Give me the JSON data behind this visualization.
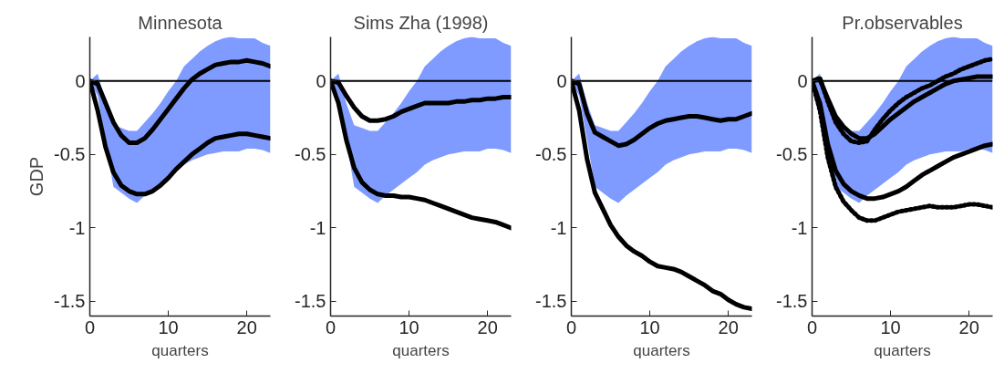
{
  "chart_data": [
    {
      "type": "line",
      "title": "Minnesota",
      "xlabel": "quarters",
      "ylabel": "GDP",
      "xlim": [
        0,
        23
      ],
      "ylim": [
        -1.6,
        0.3
      ],
      "xticks": [
        0,
        10,
        20
      ],
      "yticks": [
        -1.5,
        -1,
        -0.5,
        0
      ],
      "grid": false,
      "x": [
        0,
        1,
        2,
        3,
        4,
        5,
        6,
        7,
        8,
        9,
        10,
        11,
        12,
        13,
        14,
        15,
        16,
        17,
        18,
        19,
        20,
        21,
        22,
        23
      ],
      "ref_lines": [
        {
          "axis": "y",
          "value": 0,
          "color": "#000000"
        }
      ],
      "series": [
        {
          "color": "#000000",
          "line_style": "solid",
          "values": [
            0,
            -0.02,
            -0.15,
            -0.28,
            -0.37,
            -0.42,
            -0.42,
            -0.39,
            -0.33,
            -0.26,
            -0.19,
            -0.12,
            -0.05,
            0.01,
            0.05,
            0.08,
            0.11,
            0.12,
            0.13,
            0.13,
            0.14,
            0.13,
            0.12,
            0.1
          ],
          "lower": [
            0,
            -0.1,
            -0.4,
            -0.72,
            -0.76,
            -0.8,
            -0.83,
            -0.78,
            -0.74,
            -0.7,
            -0.66,
            -0.62,
            -0.57,
            -0.54,
            -0.52,
            -0.5,
            -0.49,
            -0.48,
            -0.48,
            -0.48,
            -0.46,
            -0.46,
            -0.47,
            -0.49
          ],
          "upper": [
            0,
            0.05,
            -0.15,
            -0.3,
            -0.32,
            -0.34,
            -0.34,
            -0.28,
            -0.22,
            -0.15,
            -0.07,
            0,
            0.1,
            0.15,
            0.2,
            0.24,
            0.27,
            0.29,
            0.3,
            0.29,
            0.29,
            0.29,
            0.26,
            0.24
          ]
        },
        {
          "color": "#000000",
          "line_style": "solid",
          "values": [
            0,
            -0.2,
            -0.45,
            -0.62,
            -0.71,
            -0.75,
            -0.77,
            -0.77,
            -0.75,
            -0.71,
            -0.66,
            -0.6,
            -0.55,
            -0.5,
            -0.46,
            -0.42,
            -0.39,
            -0.38,
            -0.37,
            -0.36,
            -0.36,
            -0.37,
            -0.38,
            -0.39
          ]
        }
      ]
    },
    {
      "type": "line",
      "title": "Sims Zha (1998)",
      "xlabel": "quarters",
      "xlim": [
        0,
        23
      ],
      "ylim": [
        -1.6,
        0.3
      ],
      "xticks": [
        0,
        10,
        20
      ],
      "yticks": [
        -1.5,
        -1,
        -0.5,
        0
      ],
      "grid": false,
      "x": [
        0,
        1,
        2,
        3,
        4,
        5,
        6,
        7,
        8,
        9,
        10,
        11,
        12,
        13,
        14,
        15,
        16,
        17,
        18,
        19,
        20,
        21,
        22,
        23
      ],
      "ref_lines": [
        {
          "axis": "y",
          "value": 0,
          "color": "#000000"
        }
      ],
      "series": [
        {
          "color": "#000000",
          "line_style": "solid",
          "values": [
            0,
            -0.01,
            -0.1,
            -0.18,
            -0.24,
            -0.27,
            -0.27,
            -0.26,
            -0.24,
            -0.21,
            -0.19,
            -0.17,
            -0.15,
            -0.15,
            -0.15,
            -0.15,
            -0.14,
            -0.14,
            -0.13,
            -0.13,
            -0.12,
            -0.12,
            -0.11,
            -0.11
          ],
          "lower": [
            0,
            -0.1,
            -0.4,
            -0.72,
            -0.76,
            -0.8,
            -0.83,
            -0.78,
            -0.74,
            -0.7,
            -0.66,
            -0.62,
            -0.57,
            -0.54,
            -0.52,
            -0.5,
            -0.49,
            -0.48,
            -0.48,
            -0.48,
            -0.46,
            -0.46,
            -0.47,
            -0.49
          ],
          "upper": [
            0,
            0.05,
            -0.15,
            -0.3,
            -0.32,
            -0.34,
            -0.34,
            -0.28,
            -0.22,
            -0.15,
            -0.07,
            0,
            0.1,
            0.15,
            0.2,
            0.24,
            0.27,
            0.29,
            0.3,
            0.29,
            0.29,
            0.29,
            0.26,
            0.24
          ]
        },
        {
          "color": "#000000",
          "line_style": "solid",
          "values": [
            0,
            -0.15,
            -0.4,
            -0.59,
            -0.69,
            -0.74,
            -0.77,
            -0.78,
            -0.78,
            -0.79,
            -0.79,
            -0.8,
            -0.81,
            -0.83,
            -0.85,
            -0.87,
            -0.89,
            -0.91,
            -0.93,
            -0.94,
            -0.95,
            -0.96,
            -0.98,
            -1.0
          ]
        }
      ]
    },
    {
      "type": "line",
      "xlabel": "quarters",
      "xlim": [
        0,
        23
      ],
      "ylim": [
        -1.6,
        0.3
      ],
      "xticks": [
        0,
        10,
        20
      ],
      "yticks": [
        -1.5,
        -1,
        -0.5,
        0
      ],
      "grid": false,
      "x": [
        0,
        1,
        2,
        3,
        4,
        5,
        6,
        7,
        8,
        9,
        10,
        11,
        12,
        13,
        14,
        15,
        16,
        17,
        18,
        19,
        20,
        21,
        22,
        23
      ],
      "ref_lines": [
        {
          "axis": "y",
          "value": 0,
          "color": "#000000"
        }
      ],
      "series": [
        {
          "color": "#000000",
          "line_style": "solid",
          "values": [
            0,
            -0.02,
            -0.22,
            -0.35,
            -0.38,
            -0.41,
            -0.44,
            -0.43,
            -0.4,
            -0.36,
            -0.32,
            -0.29,
            -0.27,
            -0.26,
            -0.25,
            -0.24,
            -0.24,
            -0.25,
            -0.26,
            -0.27,
            -0.26,
            -0.26,
            -0.24,
            -0.22
          ],
          "lower": [
            0,
            -0.1,
            -0.4,
            -0.72,
            -0.76,
            -0.8,
            -0.83,
            -0.78,
            -0.74,
            -0.7,
            -0.66,
            -0.62,
            -0.57,
            -0.54,
            -0.52,
            -0.5,
            -0.49,
            -0.48,
            -0.48,
            -0.48,
            -0.46,
            -0.46,
            -0.47,
            -0.49
          ],
          "upper": [
            0,
            0.05,
            -0.15,
            -0.3,
            -0.32,
            -0.34,
            -0.34,
            -0.28,
            -0.22,
            -0.15,
            -0.07,
            0,
            0.1,
            0.15,
            0.2,
            0.24,
            0.27,
            0.29,
            0.3,
            0.29,
            0.29,
            0.29,
            0.26,
            0.24
          ]
        },
        {
          "color": "#000000",
          "line_style": "solid",
          "values": [
            0,
            -0.2,
            -0.53,
            -0.76,
            -0.87,
            -0.98,
            -1.06,
            -1.12,
            -1.16,
            -1.19,
            -1.23,
            -1.26,
            -1.27,
            -1.28,
            -1.3,
            -1.33,
            -1.36,
            -1.39,
            -1.43,
            -1.45,
            -1.49,
            -1.52,
            -1.54,
            -1.55
          ]
        }
      ]
    },
    {
      "type": "line",
      "title": "Pr.observables",
      "xlabel": "quarters",
      "xlim": [
        0,
        23
      ],
      "ylim": [
        -1.6,
        0.3
      ],
      "xticks": [
        0,
        10,
        20
      ],
      "yticks": [
        -1.5,
        -1,
        -0.5,
        0
      ],
      "grid": false,
      "x": [
        0,
        1,
        2,
        3,
        4,
        5,
        6,
        7,
        8,
        9,
        10,
        11,
        12,
        13,
        14,
        15,
        16,
        17,
        18,
        19,
        20,
        21,
        22,
        23
      ],
      "ref_lines": [
        {
          "axis": "y",
          "value": 0,
          "color": "#000000"
        }
      ],
      "series": [
        {
          "color": "#000000",
          "line_style": "solid",
          "values": [
            0,
            0.01,
            -0.12,
            -0.24,
            -0.31,
            -0.36,
            -0.39,
            -0.39,
            -0.36,
            -0.31,
            -0.26,
            -0.22,
            -0.18,
            -0.14,
            -0.11,
            -0.08,
            -0.05,
            -0.02,
            0,
            0.01,
            0.02,
            0.03,
            0.03,
            0.03
          ],
          "lower": [
            0,
            -0.1,
            -0.4,
            -0.72,
            -0.76,
            -0.8,
            -0.83,
            -0.78,
            -0.74,
            -0.7,
            -0.66,
            -0.62,
            -0.57,
            -0.54,
            -0.52,
            -0.5,
            -0.49,
            -0.48,
            -0.48,
            -0.48,
            -0.46,
            -0.46,
            -0.47,
            -0.49
          ],
          "upper": [
            0,
            0.05,
            -0.15,
            -0.3,
            -0.32,
            -0.34,
            -0.34,
            -0.28,
            -0.22,
            -0.15,
            -0.07,
            0,
            0.1,
            0.15,
            0.2,
            0.24,
            0.27,
            0.29,
            0.3,
            0.29,
            0.29,
            0.29,
            0.26,
            0.24
          ]
        },
        {
          "color": "#000000",
          "line_style": "dotted",
          "values": [
            0,
            0.02,
            -0.14,
            -0.28,
            -0.36,
            -0.41,
            -0.42,
            -0.41,
            -0.33,
            -0.26,
            -0.2,
            -0.15,
            -0.11,
            -0.08,
            -0.05,
            -0.03,
            0,
            0.03,
            0.05,
            0.08,
            0.1,
            0.12,
            0.14,
            0.15
          ]
        },
        {
          "color": "#000000",
          "line_style": "solid",
          "values": [
            0,
            -0.15,
            -0.43,
            -0.61,
            -0.7,
            -0.75,
            -0.78,
            -0.8,
            -0.8,
            -0.79,
            -0.77,
            -0.75,
            -0.72,
            -0.68,
            -0.64,
            -0.61,
            -0.58,
            -0.55,
            -0.52,
            -0.5,
            -0.48,
            -0.46,
            -0.44,
            -0.43
          ]
        },
        {
          "color": "#000000",
          "line_style": "dotted",
          "values": [
            0,
            -0.2,
            -0.52,
            -0.72,
            -0.82,
            -0.88,
            -0.93,
            -0.95,
            -0.95,
            -0.93,
            -0.91,
            -0.89,
            -0.88,
            -0.87,
            -0.86,
            -0.85,
            -0.86,
            -0.86,
            -0.86,
            -0.85,
            -0.84,
            -0.84,
            -0.85,
            -0.86
          ]
        }
      ]
    }
  ]
}
